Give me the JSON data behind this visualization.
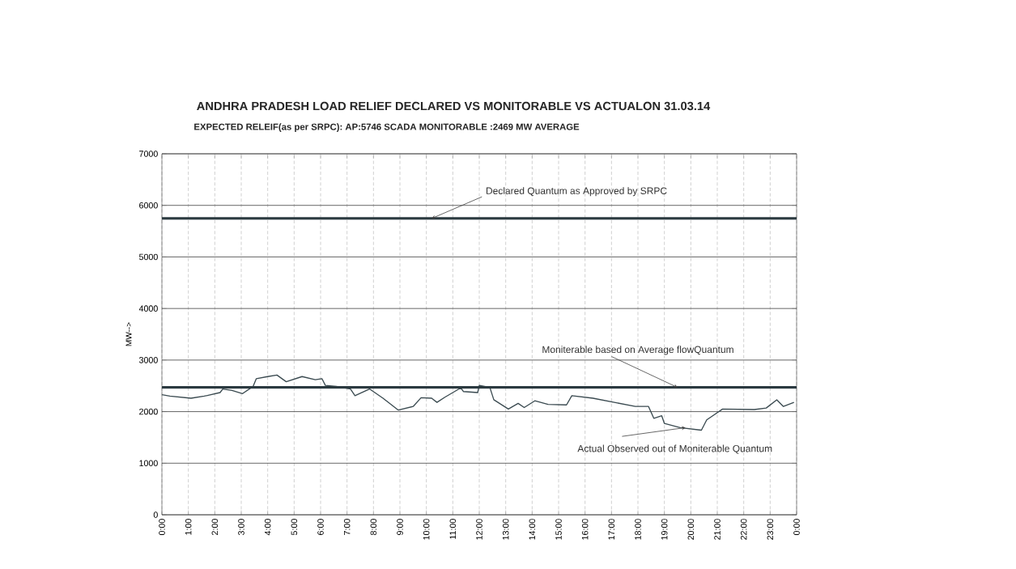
{
  "chart_data": {
    "type": "line",
    "title": "ANDHRA PRADESH LOAD RELIEF DECLARED VS MONITORABLE VS ACTUALON 31.03.14",
    "subtitle": "EXPECTED RELEIF(as per SRPC):   AP:5746        SCADA MONITORABLE :2469 MW AVERAGE",
    "ylabel": "MW-->",
    "x": [
      0,
      0.3,
      1.1,
      1.6,
      2.2,
      2.3,
      2.65,
      3.05,
      3.45,
      3.57,
      4.0,
      4.35,
      4.7,
      5.3,
      5.8,
      6.05,
      6.18,
      6.6,
      7.13,
      7.3,
      7.85,
      8.36,
      8.94,
      9.5,
      9.8,
      10.2,
      10.4,
      10.7,
      11.3,
      11.4,
      11.94,
      12.0,
      12.4,
      12.55,
      13.1,
      13.47,
      13.7,
      14.1,
      14.6,
      15.3,
      15.5,
      16.3,
      17.1,
      17.9,
      18.4,
      18.6,
      18.9,
      19.0,
      19.6,
      20.4,
      20.6,
      21.2,
      22.4,
      22.85,
      23.25,
      23.5,
      23.9
    ],
    "series": [
      {
        "color": "#3a4a50",
        "values": [
          2330,
          2300,
          2260,
          2300,
          2370,
          2440,
          2410,
          2350,
          2490,
          2640,
          2680,
          2710,
          2580,
          2680,
          2620,
          2640,
          2510,
          2490,
          2440,
          2310,
          2440,
          2260,
          2030,
          2100,
          2270,
          2260,
          2180,
          2280,
          2460,
          2390,
          2370,
          2510,
          2470,
          2230,
          2050,
          2160,
          2080,
          2210,
          2140,
          2130,
          2310,
          2260,
          2180,
          2100,
          2100,
          1870,
          1920,
          1770,
          1690,
          1640,
          1840,
          2050,
          2040,
          2070,
          2230,
          2100,
          2180
        ]
      }
    ],
    "xlim": [
      0,
      24
    ],
    "xticks": [
      {
        "value": 0,
        "label": "0:00"
      },
      {
        "value": 1,
        "label": "1:00"
      },
      {
        "value": 2,
        "label": "2:00"
      },
      {
        "value": 3,
        "label": "3:00"
      },
      {
        "value": 4,
        "label": "4:00"
      },
      {
        "value": 5,
        "label": "5:00"
      },
      {
        "value": 6,
        "label": "6:00"
      },
      {
        "value": 7,
        "label": "7:00"
      },
      {
        "value": 8,
        "label": "8:00"
      },
      {
        "value": 9,
        "label": "9:00"
      },
      {
        "value": 10,
        "label": "10:00"
      },
      {
        "value": 11,
        "label": "11:00"
      },
      {
        "value": 12,
        "label": "12:00"
      },
      {
        "value": 13,
        "label": "13:00"
      },
      {
        "value": 14,
        "label": "14:00"
      },
      {
        "value": 15,
        "label": "15:00"
      },
      {
        "value": 16,
        "label": "16:00"
      },
      {
        "value": 17,
        "label": "17:00"
      },
      {
        "value": 18,
        "label": "18:00"
      },
      {
        "value": 19,
        "label": "19:00"
      },
      {
        "value": 20,
        "label": "20:00"
      },
      {
        "value": 21,
        "label": "21:00"
      },
      {
        "value": 22,
        "label": "22:00"
      },
      {
        "value": 23,
        "label": "23:00"
      },
      {
        "value": 24,
        "label": "0:00"
      }
    ],
    "ylim": [
      0,
      7000
    ],
    "yticks": [
      0,
      1000,
      2000,
      3000,
      4000,
      5000,
      6000,
      7000
    ],
    "grid": true,
    "ref_lines": [
      {
        "axis": "y",
        "value": 5746,
        "color": "#2b3a40"
      },
      {
        "axis": "y",
        "value": 2469,
        "color": "#2b3a40"
      }
    ],
    "annotations": [
      {
        "text": "Declared Quantum as Approved by SRPC",
        "x": 10.2,
        "y": 5746
      },
      {
        "text": "Moniterable based on Average flowQuantum",
        "x": 19.5,
        "y": 2469
      },
      {
        "text": "Actual Observed out of Moniterable Quantum",
        "x": 19.8,
        "y": 1690
      }
    ]
  }
}
